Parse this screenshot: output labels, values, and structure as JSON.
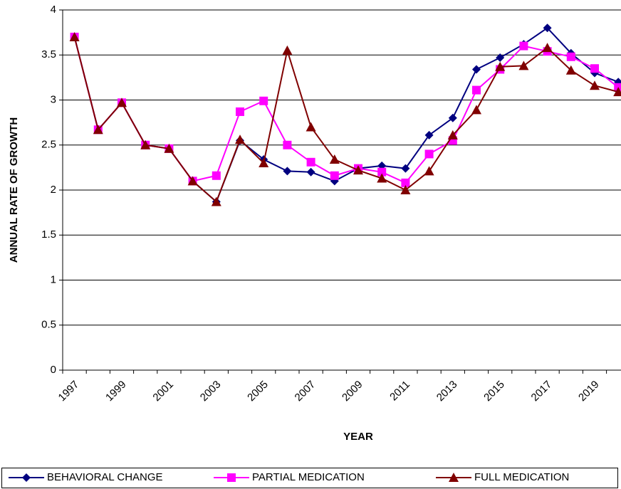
{
  "chart_data": {
    "type": "line",
    "xlabel": "YEAR",
    "ylabel": "ANNUAL RATE OF GROWTH",
    "categories": [
      "1997",
      null,
      "1999",
      null,
      "2001",
      null,
      "2003",
      null,
      "2005",
      null,
      "2007",
      null,
      "2009",
      null,
      "2011",
      null,
      "2013",
      null,
      "2015",
      null,
      "2017",
      null,
      "2019",
      null
    ],
    "series": [
      {
        "name": "BEHAVIORAL CHANGE",
        "color": "#000080",
        "marker": "diamond",
        "values": [
          3.7,
          2.67,
          2.97,
          2.5,
          2.46,
          2.1,
          1.87,
          2.55,
          2.34,
          2.21,
          2.2,
          2.1,
          2.24,
          2.27,
          2.24,
          2.61,
          2.8,
          3.34,
          3.47,
          3.62,
          3.8,
          3.52,
          3.3,
          3.2
        ]
      },
      {
        "name": "PARTIAL MEDICATION",
        "color": "#ff00ff",
        "marker": "square",
        "values": [
          3.7,
          2.67,
          2.97,
          2.5,
          2.46,
          2.1,
          2.16,
          2.87,
          2.99,
          2.5,
          2.31,
          2.16,
          2.24,
          2.2,
          2.08,
          2.4,
          2.55,
          3.11,
          3.34,
          3.6,
          3.54,
          3.48,
          3.35,
          3.14
        ]
      },
      {
        "name": "FULL MEDICATION",
        "color": "#800000",
        "marker": "triangle",
        "values": [
          3.7,
          2.67,
          2.97,
          2.5,
          2.46,
          2.1,
          1.87,
          2.56,
          2.3,
          3.55,
          2.7,
          2.34,
          2.22,
          2.13,
          2.0,
          2.21,
          2.61,
          2.89,
          3.37,
          3.38,
          3.58,
          3.33,
          3.16,
          3.09
        ]
      }
    ],
    "ylim": [
      0,
      4
    ],
    "yticks": [
      0,
      0.5,
      1,
      1.5,
      2,
      2.5,
      3,
      3.5,
      4
    ],
    "grid": true,
    "legend": "bottom"
  }
}
